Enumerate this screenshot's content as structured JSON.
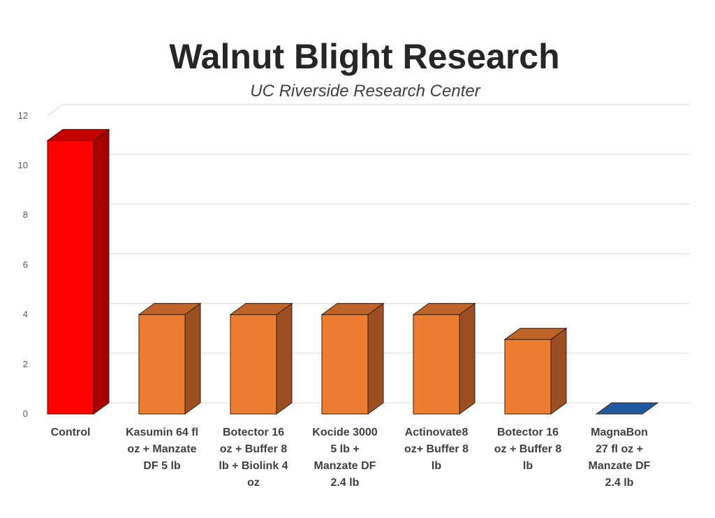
{
  "chart_data": {
    "type": "bar",
    "title": "Walnut Blight Research",
    "subtitle": "UC Riverside Research Center",
    "xlabel": "",
    "ylabel": "",
    "ylim": [
      0,
      12
    ],
    "yticks": [
      "0",
      "2",
      "4",
      "6",
      "8",
      "10",
      "12"
    ],
    "grid": true,
    "categories": [
      [
        "Control"
      ],
      [
        "Kasumin 64 fl",
        "oz + Manzate",
        "DF 5 lb"
      ],
      [
        "Botector 16",
        "oz + Buffer 8",
        "lb + Biolink 4",
        "oz"
      ],
      [
        "Kocide 3000",
        "5 lb +",
        "Manzate DF",
        "2.4 lb"
      ],
      [
        "Actinovate8",
        "oz+ Buffer 8",
        "lb"
      ],
      [
        "Botector 16",
        "oz + Buffer 8",
        "lb"
      ],
      [
        "MagnaBon",
        "27 fl oz +",
        "Manzate DF",
        "2.4 lb"
      ]
    ],
    "values": [
      11,
      4,
      4,
      4,
      4,
      3,
      0
    ],
    "colors": [
      {
        "front": "#ff0000",
        "side": "#a80000",
        "top": "#c40000"
      },
      {
        "front": "#ed7d31",
        "side": "#9c4f22",
        "top": "#bf6428"
      },
      {
        "front": "#ed7d31",
        "side": "#9c4f22",
        "top": "#bf6428"
      },
      {
        "front": "#ed7d31",
        "side": "#9c4f22",
        "top": "#bf6428"
      },
      {
        "front": "#ed7d31",
        "side": "#9c4f22",
        "top": "#bf6428"
      },
      {
        "front": "#ed7d31",
        "side": "#9c4f22",
        "top": "#bf6428"
      },
      {
        "front": "#1f5aa0",
        "side": "#163f70",
        "top": "#1f5aa0"
      }
    ]
  }
}
